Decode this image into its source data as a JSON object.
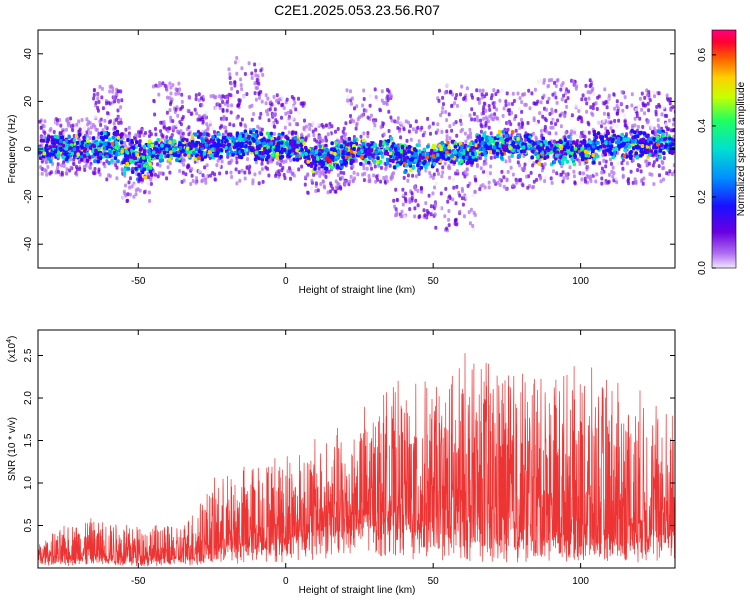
{
  "title": "C2E1.2025.053.23.56.R07",
  "chart_data": [
    {
      "type": "scatter",
      "xlabel": "Height of straight line (km)",
      "ylabel": "Frequency (Hz)",
      "xlim": [
        -84,
        132
      ],
      "ylim": [
        -50,
        50
      ],
      "xticks": [
        -50,
        0,
        50,
        100
      ],
      "yticks": [
        -40,
        -20,
        0,
        20,
        40
      ],
      "colorbar": {
        "label": "Normalized spectral amplitude",
        "range": [
          0,
          0.67
        ],
        "ticks": [
          0.0,
          0.2,
          0.4,
          0.6
        ],
        "colors": [
          "#f0e6ff",
          "#b06ff0",
          "#6a00e0",
          "#1a10ff",
          "#0090ff",
          "#00e0d0",
          "#20ff60",
          "#c8ff00",
          "#ffd000",
          "#ff6000",
          "#ff0030",
          "#ff0080"
        ]
      },
      "bands": [
        {
          "x": [
            -84,
            -66
          ],
          "core": [
            -2,
            4
          ],
          "outer": [
            -10,
            14
          ]
        },
        {
          "x": [
            -66,
            -56
          ],
          "core": [
            -3,
            6
          ],
          "outer": [
            -12,
            28
          ]
        },
        {
          "x": [
            -56,
            -46
          ],
          "core": [
            -10,
            3
          ],
          "outer": [
            -22,
            10
          ]
        },
        {
          "x": [
            -46,
            -36
          ],
          "core": [
            -2,
            3
          ],
          "outer": [
            -12,
            30
          ]
        },
        {
          "x": [
            -36,
            -20
          ],
          "core": [
            -1,
            5
          ],
          "outer": [
            -14,
            24
          ]
        },
        {
          "x": [
            -20,
            -8
          ],
          "core": [
            -2,
            6
          ],
          "outer": [
            -14,
            40
          ]
        },
        {
          "x": [
            -8,
            6
          ],
          "core": [
            -1,
            5
          ],
          "outer": [
            -12,
            24
          ]
        },
        {
          "x": [
            6,
            20
          ],
          "core": [
            -6,
            2
          ],
          "outer": [
            -18,
            12
          ]
        },
        {
          "x": [
            20,
            36
          ],
          "core": [
            -3,
            3
          ],
          "outer": [
            -14,
            26
          ]
        },
        {
          "x": [
            36,
            50
          ],
          "core": [
            -6,
            1
          ],
          "outer": [
            -28,
            14
          ]
        },
        {
          "x": [
            50,
            64
          ],
          "core": [
            -3,
            2
          ],
          "outer": [
            -34,
            28
          ]
        },
        {
          "x": [
            64,
            84
          ],
          "core": [
            -1,
            6
          ],
          "outer": [
            -16,
            26
          ]
        },
        {
          "x": [
            84,
            104
          ],
          "core": [
            -3,
            3
          ],
          "outer": [
            -14,
            30
          ]
        },
        {
          "x": [
            104,
            132
          ],
          "core": [
            -1,
            7
          ],
          "outer": [
            -14,
            26
          ]
        }
      ]
    },
    {
      "type": "line",
      "xlabel": "Height of straight line (km)",
      "ylabel": "SNR (10 * v/v)",
      "yscale_label": "(x10",
      "yscale_exp": "4",
      "xlim": [
        -84,
        132
      ],
      "ylim": [
        0,
        28000
      ],
      "xticks": [
        -50,
        0,
        50,
        100
      ],
      "yticks": [
        5000,
        10000,
        15000,
        20000,
        25000
      ],
      "ytick_labels": [
        "0.5",
        "1.0",
        "1.5",
        "2.0",
        "2.5"
      ],
      "color": "#ee3333",
      "envelope": [
        {
          "x": -84,
          "base": 1000,
          "peak": 3000
        },
        {
          "x": -70,
          "base": 1000,
          "peak": 6000
        },
        {
          "x": -50,
          "base": 800,
          "peak": 5500
        },
        {
          "x": -36,
          "base": 900,
          "peak": 5000
        },
        {
          "x": -26,
          "base": 1500,
          "peak": 10000
        },
        {
          "x": -10,
          "base": 2500,
          "peak": 13000
        },
        {
          "x": 5,
          "base": 3500,
          "peak": 15000
        },
        {
          "x": 20,
          "base": 5000,
          "peak": 17000
        },
        {
          "x": 32,
          "base": 6000,
          "peak": 21000
        },
        {
          "x": 50,
          "base": 4000,
          "peak": 22000
        },
        {
          "x": 62,
          "base": 3000,
          "peak": 26000
        },
        {
          "x": 85,
          "base": 3000,
          "peak": 24000
        },
        {
          "x": 110,
          "base": 2500,
          "peak": 23000
        },
        {
          "x": 132,
          "base": 3500,
          "peak": 19000
        }
      ]
    }
  ]
}
